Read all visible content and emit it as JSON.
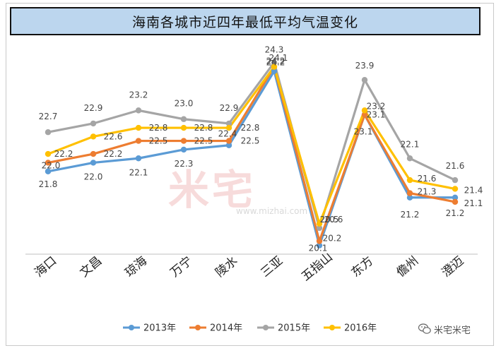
{
  "chart_data": {
    "type": "line",
    "title": "海南各城市近四年最低平均气温变化",
    "categories": [
      "海口",
      "文昌",
      "琼海",
      "万宁",
      "陵水",
      "三亚",
      "五指山",
      "东方",
      "儋州",
      "澄迈"
    ],
    "series": [
      {
        "name": "2013年",
        "color": "#5b9bd5",
        "values": [
          21.8,
          22.0,
          22.1,
          22.3,
          22.4,
          24.1,
          20.1,
          23.1,
          21.2,
          21.2
        ]
      },
      {
        "name": "2014年",
        "color": "#ed7d31",
        "values": [
          22.0,
          22.2,
          22.5,
          22.5,
          22.5,
          24.2,
          20.2,
          23.1,
          21.3,
          21.1
        ]
      },
      {
        "name": "2015年",
        "color": "#a5a5a5",
        "values": [
          22.7,
          22.9,
          23.2,
          23.0,
          22.9,
          24.3,
          20.5,
          23.9,
          22.1,
          21.6
        ]
      },
      {
        "name": "2016年",
        "color": "#ffc000",
        "values": [
          22.2,
          22.6,
          22.8,
          22.8,
          22.8,
          24.2,
          20.6,
          23.2,
          21.6,
          21.4
        ]
      }
    ],
    "ylim": [
      19.9,
      24.6
    ],
    "grid": false,
    "legend": "bottom"
  },
  "watermark": {
    "brand": "米宅",
    "url": "www.mizhai.com"
  },
  "corner_logo": {
    "text": "米宅米宅",
    "icon": "wechat-icon"
  }
}
